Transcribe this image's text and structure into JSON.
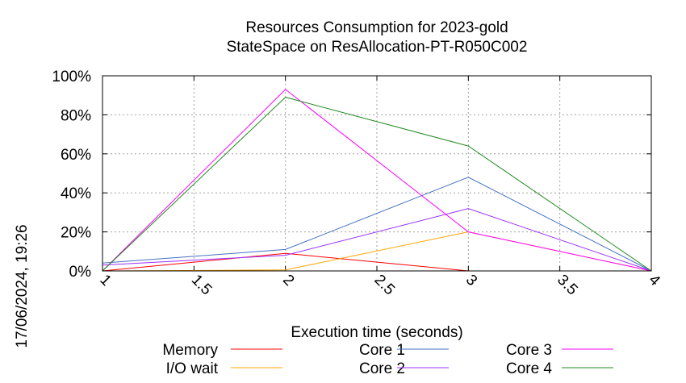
{
  "timestamp": "17/06/2024, 19:26",
  "chart_data": {
    "type": "line",
    "title": "Resources Consumption for 2023-gold",
    "subtitle": "StateSpace on ResAllocation-PT-R050C002",
    "xlabel": "Execution time (seconds)",
    "ylabel": "",
    "xlim": [
      1,
      4
    ],
    "ylim": [
      0,
      100
    ],
    "x_ticks": [
      "1",
      "1.5",
      "2",
      "2.5",
      "3",
      "3.5",
      "4"
    ],
    "y_ticks": [
      "0%",
      "20%",
      "40%",
      "60%",
      "80%",
      "100%"
    ],
    "grid": true,
    "legend_position": "bottom",
    "series": [
      {
        "name": "Memory",
        "color": "#ff0000",
        "x": [
          1,
          2,
          3
        ],
        "values": [
          0,
          9,
          0
        ]
      },
      {
        "name": "I/O wait",
        "color": "#ffa500",
        "x": [
          1,
          2,
          3,
          4
        ],
        "values": [
          0,
          0.5,
          20,
          0
        ]
      },
      {
        "name": "Core 1",
        "color": "#4472c4",
        "x": [
          1,
          2,
          3,
          4
        ],
        "values": [
          4,
          11,
          48,
          0
        ]
      },
      {
        "name": "Core 2",
        "color": "#9b30ff",
        "x": [
          1,
          2,
          3,
          4
        ],
        "values": [
          3,
          8,
          32,
          0
        ]
      },
      {
        "name": "Core 3",
        "color": "#ff00ff",
        "x": [
          1,
          2,
          3,
          4
        ],
        "values": [
          0,
          93,
          20,
          0
        ]
      },
      {
        "name": "Core 4",
        "color": "#228b22",
        "x": [
          1,
          2,
          3,
          4
        ],
        "values": [
          0,
          89,
          64,
          0
        ]
      }
    ]
  }
}
